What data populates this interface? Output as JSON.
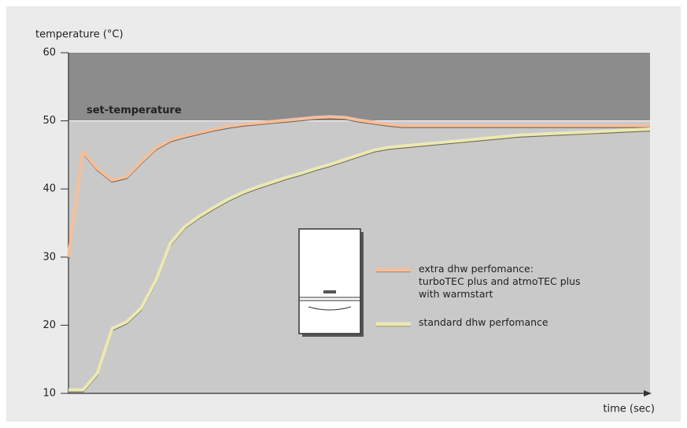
{
  "chart_data": {
    "type": "line",
    "y_label": "temperature (°C)",
    "x_label": "time (sec)",
    "set_temperature": {
      "label": "set-temperature",
      "value": 50
    },
    "categories": [
      null,
      null,
      null,
      null,
      null,
      null,
      null,
      null,
      null,
      null,
      null,
      null,
      null,
      null,
      null,
      null,
      null,
      null,
      null,
      null,
      null,
      null,
      null,
      null,
      null,
      null,
      null,
      null,
      null,
      null,
      null,
      null,
      null,
      null,
      null,
      null,
      null,
      null,
      null,
      null,
      null
    ],
    "series": [
      {
        "name": "extra dhw perfomance:\nturboTEC plus and atmoTEC plus\nwith warmstart",
        "color": "#f5bf9a",
        "values": [
          30,
          45.5,
          43,
          41.3,
          41.8,
          44,
          46,
          47.2,
          47.8,
          48.3,
          48.8,
          49.2,
          49.5,
          49.7,
          49.9,
          50.1,
          50.3,
          50.5,
          50.6,
          50.5,
          50.1,
          49.8,
          49.5,
          49.3,
          49.3,
          49.3,
          49.3,
          49.3,
          49.3,
          49.3,
          49.3,
          49.3,
          49.3,
          49.3,
          49.3,
          49.3,
          49.3,
          49.3,
          49.3,
          49.3,
          49.3
        ]
      },
      {
        "name": "standard dhw perfomance",
        "color": "#ece9b0",
        "values": [
          10.5,
          10.5,
          13,
          19.5,
          20.5,
          22.5,
          26.5,
          32,
          34.5,
          36,
          37.3,
          38.5,
          39.5,
          40.3,
          41,
          41.7,
          42.3,
          43,
          43.6,
          44.3,
          45,
          45.7,
          46.1,
          46.3,
          46.5,
          46.7,
          46.9,
          47.1,
          47.3,
          47.5,
          47.7,
          47.9,
          48,
          48.1,
          48.2,
          48.3,
          48.4,
          48.5,
          48.6,
          48.7,
          48.8
        ]
      }
    ],
    "ylim": [
      10,
      60
    ],
    "yticks": [
      10,
      20,
      30,
      40,
      50,
      60
    ]
  }
}
